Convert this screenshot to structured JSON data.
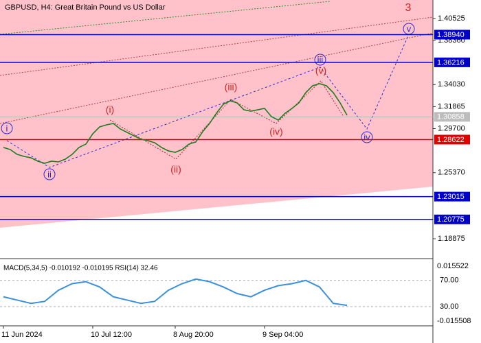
{
  "chart_data": {
    "type": "line",
    "title": "GBPUSD, H4:  Great Britain Pound vs US Dollar",
    "categories": [
      "11 Jun 2024",
      null,
      null,
      null,
      null,
      null,
      null,
      null,
      null,
      null,
      null,
      null,
      null,
      "10 Jul 12:00",
      null,
      null,
      null,
      null,
      null,
      null,
      null,
      null,
      null,
      null,
      null,
      "8 Aug 20:00",
      null,
      null,
      null,
      null,
      null,
      null,
      null,
      null,
      null,
      null,
      null,
      null,
      "9 Sep 04:00",
      null,
      null,
      null,
      null,
      null,
      null,
      null,
      null,
      null,
      null,
      null,
      null
    ],
    "values": [
      1.2785,
      1.2764,
      1.2717,
      1.2697,
      1.2683,
      1.265,
      1.2629,
      1.265,
      1.2643,
      1.267,
      1.2717,
      1.2785,
      1.2818,
      1.2919,
      1.2987,
      1.3007,
      1.3021,
      1.2967,
      1.2933,
      1.2899,
      1.2866,
      1.2852,
      1.2832,
      1.2785,
      1.2751,
      1.2737,
      1.2764,
      1.2818,
      1.2839,
      1.294,
      1.3021,
      1.3122,
      1.3209,
      1.3243,
      1.3223,
      1.3155,
      1.3142,
      1.3155,
      1.3169,
      1.3088,
      1.3054,
      1.3122,
      1.3169,
      1.3223,
      1.3324,
      1.3392,
      1.3412,
      1.3392,
      1.3324,
      1.3223,
      1.3102
    ],
    "color": "#1f7a1f",
    "ylim": [
      1.17054,
      1.42346
    ],
    "yticks": [
      1.40525,
      {
        "value": 1.3836,
        "label": "1.38360"
      },
      {
        "value": 1.3403,
        "label": "1.34030"
      },
      1.31865,
      {
        "value": 1.297,
        "label": "1.29700"
      },
      {
        "value": 1.2537,
        "label": "1.25370"
      },
      1.18875
    ],
    "levels": [
      {
        "value": 1.3894,
        "label": "1.38940",
        "color": "#0000c8"
      },
      {
        "value": 1.36216,
        "label": "1.36216",
        "color": "#0000c8"
      },
      {
        "value": 1.30858,
        "label": "1.30858",
        "color": "#bdbdbd"
      },
      {
        "value": 1.28622,
        "label": "1.28622",
        "color": "#e00000"
      },
      {
        "value": 1.23015,
        "label": "1.23015",
        "color": "#0000c8"
      },
      {
        "value": 1.20775,
        "label": "1.20775",
        "color": "#0000c8"
      }
    ],
    "annotations": [
      "i",
      "ii",
      "iii",
      "iv",
      "v",
      "(i)",
      "(ii)",
      "(iii)",
      "(iv)",
      "(v)",
      "3"
    ],
    "indicator": {
      "label": "MACD(5,34,5) -0.010192 -0.010195 RSI(14) 32.46",
      "macd_ticks": [
        "0.015522",
        "-0.015508"
      ],
      "rsi_ylim": [
        6,
        100
      ],
      "rsi_ticks": [
        {
          "value": 70,
          "label": "70.00"
        },
        {
          "value": 30,
          "label": "30.00"
        }
      ],
      "rsi_color": "#3a8fe0",
      "rsi_values": [
        45,
        40,
        35,
        38,
        55,
        65,
        68,
        60,
        45,
        40,
        35,
        38,
        55,
        65,
        72,
        68,
        60,
        50,
        45,
        55,
        62,
        65,
        70,
        60,
        35,
        32
      ]
    }
  }
}
